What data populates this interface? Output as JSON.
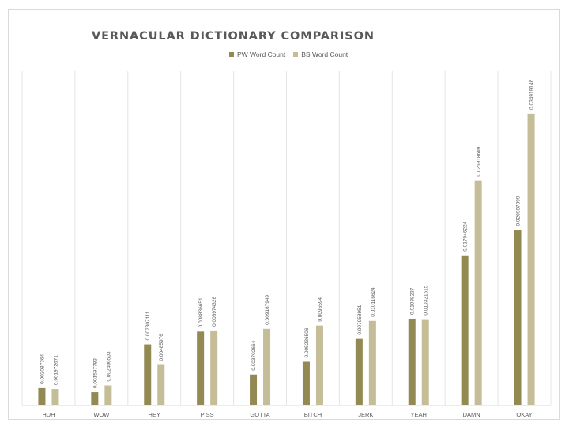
{
  "chart_data": {
    "type": "bar",
    "title": "VERNACULAR DICTIONARY COMPARISON",
    "xlabel": "",
    "ylabel": "",
    "categories": [
      "HUH",
      "WOW",
      "HEY",
      "PISS",
      "GOTTA",
      "BITCH",
      "JERK",
      "YEAH",
      "DAMN",
      "OKAY"
    ],
    "series": [
      {
        "name": "PW Word Count",
        "color": "#938953",
        "values": [
          0.002087364,
          0.001597783,
          0.007307111,
          0.008836651,
          0.003702664,
          0.005236506,
          0.007958951,
          0.01038237,
          0.017946224,
          0.020987899
        ],
        "labels": [
          "0.002087364",
          "0.001597783",
          "0.007307111",
          "0.008836651",
          "0.003702664",
          "0.005236506",
          "0.007958951",
          "0.01038237",
          "0.017946224",
          "0.020987899"
        ]
      },
      {
        "name": "BS Word Count",
        "color": "#c4bd97",
        "values": [
          0.001972671,
          0.002406503,
          0.00485976,
          0.008974326,
          0.009167949,
          0.0095594,
          0.010116624,
          0.010321515,
          0.026918609,
          0.034919146
        ],
        "labels": [
          "0.001972671",
          "0.002406503",
          "0.00485976",
          "0.008974326",
          "0.009167949",
          "0.0095594",
          "0.010116624",
          "0.010321515",
          "0.026918609",
          "0.034919146"
        ]
      }
    ],
    "ylim": [
      0,
      0.04
    ],
    "grid": "vertical",
    "legend": "top-center"
  }
}
